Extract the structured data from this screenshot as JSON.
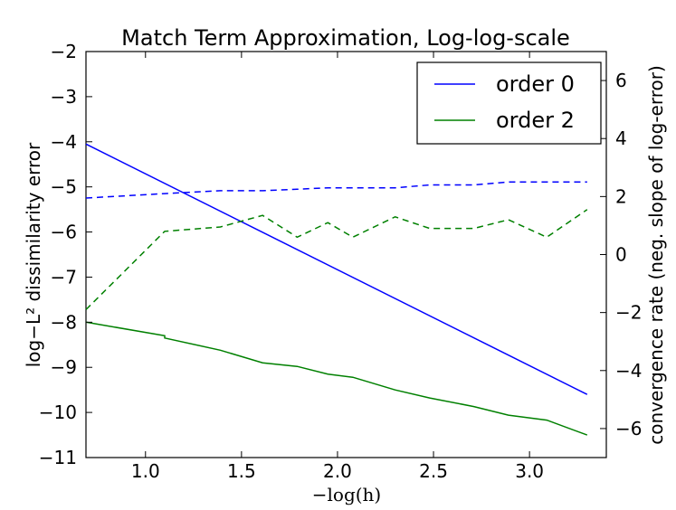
{
  "chart_data": {
    "type": "line",
    "title": "Match Term Approximation, Log-log-scale",
    "xlabel": "−log(h)",
    "ylabel_left": "log−L² dissimilarity error",
    "ylabel_right": "convergence rate (neg. slope of log-error)",
    "xlim": [
      0.69,
      3.4
    ],
    "ylim_left": [
      -11,
      -2
    ],
    "ylim_right": [
      -7,
      7
    ],
    "x_ticks": [
      1.0,
      1.5,
      2.0,
      2.5,
      3.0
    ],
    "x_tick_labels": [
      "1.0",
      "1.5",
      "2.0",
      "2.5",
      "3.0"
    ],
    "y_left_ticks": [
      -2,
      -3,
      -4,
      -5,
      -6,
      -7,
      -8,
      -9,
      -10,
      -11
    ],
    "y_left_tick_labels": [
      "−2",
      "−3",
      "−4",
      "−5",
      "−6",
      "−7",
      "−8",
      "−9",
      "−10",
      "−11"
    ],
    "y_right_ticks": [
      6,
      4,
      2,
      0,
      -2,
      -4,
      -6
    ],
    "y_right_tick_labels": [
      "6",
      "4",
      "2",
      "0",
      "−2",
      "−4",
      "−6"
    ],
    "legend_position": "top-right",
    "series": [
      {
        "name": "order 0",
        "axis": "left",
        "style": "solid",
        "color": "#0000ff",
        "x": [
          0.69,
          3.3
        ],
        "y": [
          -4.05,
          -9.6
        ]
      },
      {
        "name": "order 2",
        "axis": "left",
        "style": "solid",
        "color": "#008000",
        "x": [
          0.69,
          1.1,
          1.1,
          1.39,
          1.61,
          1.79,
          1.95,
          2.08,
          2.3,
          2.48,
          2.71,
          2.89,
          3.09,
          3.3
        ],
        "y": [
          -8.0,
          -8.3,
          -8.35,
          -8.62,
          -8.9,
          -8.98,
          -9.15,
          -9.22,
          -9.5,
          -9.68,
          -9.87,
          -10.06,
          -10.17,
          -10.5
        ]
      },
      {
        "axis": "right",
        "style": "dashed",
        "color": "#0000ff",
        "x": [
          0.69,
          1.1,
          1.39,
          1.61,
          1.79,
          1.95,
          2.08,
          2.3,
          2.48,
          2.71,
          2.89,
          3.09,
          3.3
        ],
        "y": [
          1.95,
          2.1,
          2.2,
          2.2,
          2.25,
          2.3,
          2.3,
          2.3,
          2.4,
          2.4,
          2.5,
          2.5,
          2.5
        ]
      },
      {
        "axis": "right",
        "style": "dashed",
        "color": "#008000",
        "x": [
          0.69,
          1.1,
          1.39,
          1.61,
          1.79,
          1.95,
          2.08,
          2.3,
          2.48,
          2.71,
          2.89,
          3.09,
          3.3
        ],
        "y": [
          -1.9,
          0.8,
          0.95,
          1.35,
          0.6,
          1.1,
          0.6,
          1.3,
          0.9,
          0.9,
          1.2,
          0.6,
          1.55
        ]
      }
    ]
  }
}
